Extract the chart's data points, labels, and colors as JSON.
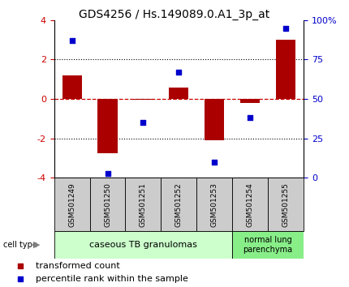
{
  "title": "GDS4256 / Hs.149089.0.A1_3p_at",
  "samples": [
    "GSM501249",
    "GSM501250",
    "GSM501251",
    "GSM501252",
    "GSM501253",
    "GSM501254",
    "GSM501255"
  ],
  "transformed_counts": [
    1.2,
    -2.75,
    -0.05,
    0.6,
    -2.1,
    -0.2,
    3.0
  ],
  "percentile_ranks": [
    87,
    3,
    35,
    67,
    10,
    38,
    95
  ],
  "ylim_left": [
    -4,
    4
  ],
  "ylim_right": [
    0,
    100
  ],
  "yticks_left": [
    -4,
    -2,
    0,
    2,
    4
  ],
  "yticks_right": [
    0,
    25,
    50,
    75,
    100
  ],
  "ytick_labels_right": [
    "0",
    "25",
    "50",
    "75",
    "100%"
  ],
  "bar_color": "#AA0000",
  "dot_color": "#0000CC",
  "zero_line_color": "#CC0000",
  "dotted_line_color": "#000000",
  "groups": [
    {
      "label": "caseous TB granulomas",
      "start": 0,
      "end": 4,
      "color": "#CCFFCC"
    },
    {
      "label": "normal lung\nparenchyma",
      "start": 5,
      "end": 6,
      "color": "#88EE88"
    }
  ],
  "cell_type_label": "cell type",
  "legend": [
    {
      "color": "#AA0000",
      "label": "transformed count"
    },
    {
      "color": "#0000CC",
      "label": "percentile rank within the sample"
    }
  ],
  "title_fontsize": 10,
  "tick_fontsize": 8,
  "group_fontsize": 8,
  "legend_fontsize": 8,
  "sample_box_color": "#CCCCCC",
  "left_tick_color": "#CC0000",
  "right_tick_color": "#0000CC"
}
